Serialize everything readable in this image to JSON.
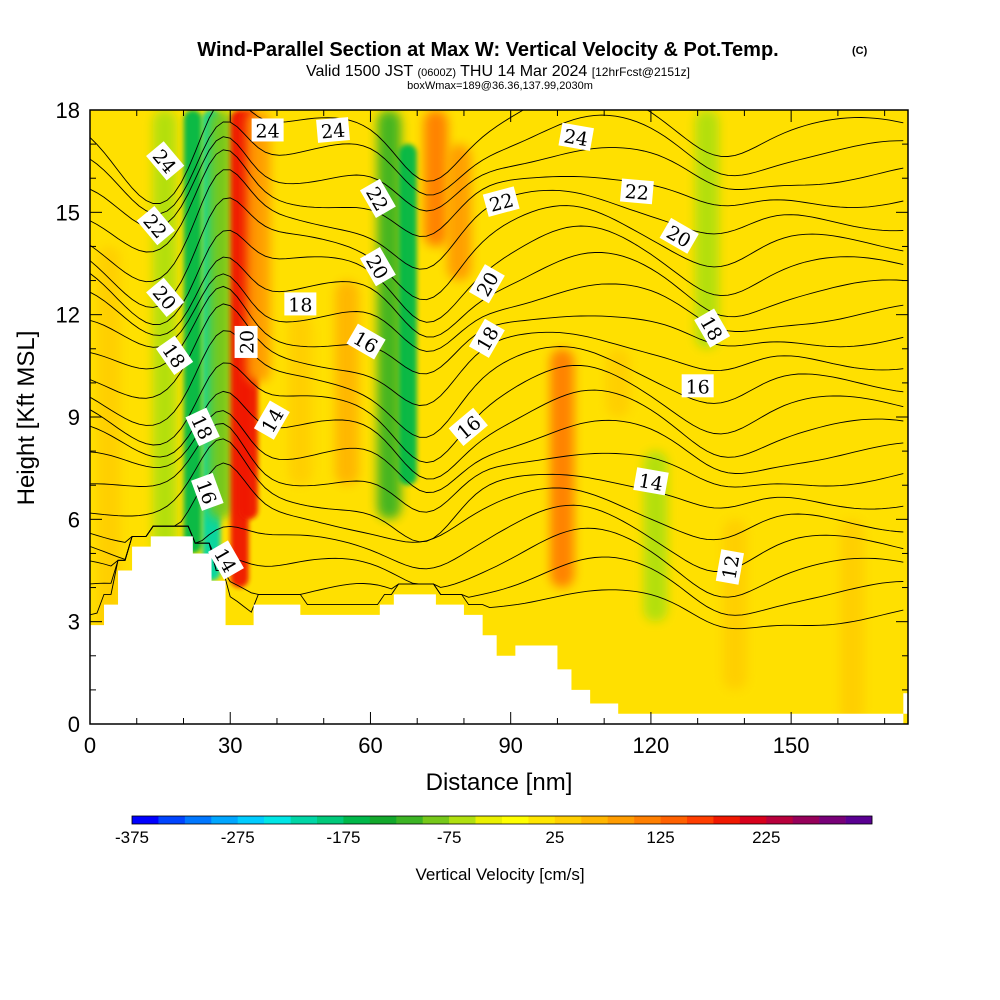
{
  "chart_data": {
    "type": "heatmap",
    "title": "Wind-Parallel Section at Max W: Vertical Velocity & Pot.Temp.",
    "copyright": "(C)",
    "subtitle": {
      "valid_prefix": "Valid 1500 JST",
      "zulu": "(0600Z)",
      "valid_date": "THU 14 Mar 2024",
      "forecast": "[12hrFcst@2151z]"
    },
    "box_note": "boxWmax=189@36.36,137.99,2030m",
    "xlabel": "Distance [nm]",
    "ylabel": "Height [Kft MSL]",
    "xlim": [
      0,
      175
    ],
    "ylim": [
      0,
      18
    ],
    "x_ticks": [
      "0",
      "30",
      "60",
      "90",
      "120",
      "150"
    ],
    "y_ticks": [
      "0",
      "3",
      "6",
      "9",
      "12",
      "15",
      "18"
    ],
    "colorbar": {
      "label": "Vertical Velocity [cm/s]",
      "tick_labels": [
        "-375",
        "-275",
        "-175",
        "-75",
        "25",
        "125",
        "225"
      ],
      "colors": [
        "#0000ff",
        "#0044ff",
        "#0077ff",
        "#00a6ff",
        "#00ccff",
        "#00e6e6",
        "#00d6a6",
        "#00c97a",
        "#00b84a",
        "#13a82c",
        "#3cb424",
        "#76c81a",
        "#b0e010",
        "#eaf000",
        "#ffff00",
        "#ffe600",
        "#ffcf00",
        "#ffb600",
        "#ff9c00",
        "#ff7f00",
        "#ff6100",
        "#ff3e00",
        "#f01800",
        "#d8001c",
        "#b8003c",
        "#96005a",
        "#780078",
        "#5a0092"
      ]
    },
    "terrain": [
      [
        0,
        2.9
      ],
      [
        3,
        2.9
      ],
      [
        3,
        3.5
      ],
      [
        6,
        3.5
      ],
      [
        6,
        4.5
      ],
      [
        9,
        4.5
      ],
      [
        9,
        5.2
      ],
      [
        13,
        5.2
      ],
      [
        13,
        5.5
      ],
      [
        22,
        5.5
      ],
      [
        22,
        5.0
      ],
      [
        26,
        5.0
      ],
      [
        26,
        4.2
      ],
      [
        29,
        4.2
      ],
      [
        29,
        2.9
      ],
      [
        35,
        2.9
      ],
      [
        35,
        3.5
      ],
      [
        45,
        3.5
      ],
      [
        45,
        3.2
      ],
      [
        62,
        3.2
      ],
      [
        62,
        3.5
      ],
      [
        65,
        3.5
      ],
      [
        65,
        3.8
      ],
      [
        74,
        3.8
      ],
      [
        74,
        3.5
      ],
      [
        80,
        3.5
      ],
      [
        80,
        3.2
      ],
      [
        84,
        3.2
      ],
      [
        84,
        2.6
      ],
      [
        87,
        2.6
      ],
      [
        87,
        2.0
      ],
      [
        91,
        2.0
      ],
      [
        91,
        2.3
      ],
      [
        100,
        2.3
      ],
      [
        100,
        1.6
      ],
      [
        103,
        1.6
      ],
      [
        103,
        1.0
      ],
      [
        107,
        1.0
      ],
      [
        107,
        0.6
      ],
      [
        113,
        0.6
      ],
      [
        113,
        0.3
      ],
      [
        175,
        0.3
      ],
      [
        175,
        0.9
      ],
      [
        174,
        0.9
      ],
      [
        174,
        0
      ]
    ],
    "vertical_velocity_features": [
      {
        "x": 4,
        "y": [
          0,
          14
        ],
        "w": 25
      },
      {
        "x": 16,
        "y": [
          5,
          18
        ],
        "w": -60
      },
      {
        "x": 22,
        "y": [
          5,
          18
        ],
        "w": -160
      },
      {
        "x": 26,
        "y": [
          4.2,
          18
        ],
        "w": -210
      },
      {
        "x": 28,
        "y": [
          6,
          18
        ],
        "w": -80
      },
      {
        "x": 32,
        "y": [
          4,
          18
        ],
        "w": 175
      },
      {
        "x": 34,
        "y": [
          6,
          18
        ],
        "w": 189
      },
      {
        "x": 36,
        "y": [
          10,
          18
        ],
        "w": 90
      },
      {
        "x": 45,
        "y": [
          7,
          12
        ],
        "w": 45
      },
      {
        "x": 55,
        "y": [
          7,
          13
        ],
        "w": 50
      },
      {
        "x": 64,
        "y": [
          6,
          18
        ],
        "w": -120
      },
      {
        "x": 68,
        "y": [
          7,
          17
        ],
        "w": -170
      },
      {
        "x": 74,
        "y": [
          14,
          18
        ],
        "w": 110
      },
      {
        "x": 79,
        "y": [
          13,
          17
        ],
        "w": 80
      },
      {
        "x": 101,
        "y": [
          4,
          11
        ],
        "w": 100
      },
      {
        "x": 121,
        "y": [
          3,
          8
        ],
        "w": -60
      },
      {
        "x": 132,
        "y": [
          11,
          18
        ],
        "w": -55
      },
      {
        "x": 138,
        "y": [
          1,
          6
        ],
        "w": 35
      },
      {
        "x": 163,
        "y": [
          0,
          6
        ],
        "w": 40
      },
      {
        "x": 113,
        "y": [
          9,
          11
        ],
        "w": 35
      }
    ],
    "theta_contours": [
      {
        "value": 12,
        "label": "12"
      },
      {
        "value": 14,
        "label": "14"
      },
      {
        "value": 16,
        "label": "16"
      },
      {
        "value": 18,
        "label": "18"
      },
      {
        "value": 20,
        "label": "20"
      },
      {
        "value": 22,
        "label": "22"
      },
      {
        "value": 24,
        "label": "24"
      }
    ],
    "contour_labels": [
      {
        "text": "24",
        "x": 16,
        "y": 16.5,
        "angle": 50
      },
      {
        "text": "22",
        "x": 14,
        "y": 14.6,
        "angle": 50
      },
      {
        "text": "20",
        "x": 16,
        "y": 12.5,
        "angle": 50
      },
      {
        "text": "18",
        "x": 18,
        "y": 10.8,
        "angle": 55
      },
      {
        "text": "18",
        "x": 24,
        "y": 8.7,
        "angle": 65
      },
      {
        "text": "16",
        "x": 25,
        "y": 6.8,
        "angle": 70
      },
      {
        "text": "14",
        "x": 29,
        "y": 4.8,
        "angle": 60
      },
      {
        "text": "20",
        "x": 33.5,
        "y": 11.2,
        "angle": -90
      },
      {
        "text": "14",
        "x": 39,
        "y": 8.9,
        "angle": -60
      },
      {
        "text": "18",
        "x": 45,
        "y": 12.3,
        "angle": 0
      },
      {
        "text": "16",
        "x": 59,
        "y": 11.2,
        "angle": 30
      },
      {
        "text": "24",
        "x": 38,
        "y": 17.4,
        "angle": 0
      },
      {
        "text": "24",
        "x": 52,
        "y": 17.4,
        "angle": -5
      },
      {
        "text": "22",
        "x": 61.5,
        "y": 15.4,
        "angle": 60
      },
      {
        "text": "20",
        "x": 61.5,
        "y": 13.4,
        "angle": 60
      },
      {
        "text": "22",
        "x": 88,
        "y": 15.3,
        "angle": -15
      },
      {
        "text": "20",
        "x": 85,
        "y": 12.9,
        "angle": -60
      },
      {
        "text": "18",
        "x": 85,
        "y": 11.3,
        "angle": -60
      },
      {
        "text": "16",
        "x": 81,
        "y": 8.7,
        "angle": -40
      },
      {
        "text": "24",
        "x": 104,
        "y": 17.2,
        "angle": 10
      },
      {
        "text": "22",
        "x": 117,
        "y": 15.6,
        "angle": 5
      },
      {
        "text": "20",
        "x": 126,
        "y": 14.3,
        "angle": 30
      },
      {
        "text": "18",
        "x": 133,
        "y": 11.6,
        "angle": 60
      },
      {
        "text": "16",
        "x": 130,
        "y": 9.9,
        "angle": 0
      },
      {
        "text": "14",
        "x": 120,
        "y": 7.1,
        "angle": 10
      },
      {
        "text": "12",
        "x": 137,
        "y": 4.6,
        "angle": -80
      }
    ]
  }
}
